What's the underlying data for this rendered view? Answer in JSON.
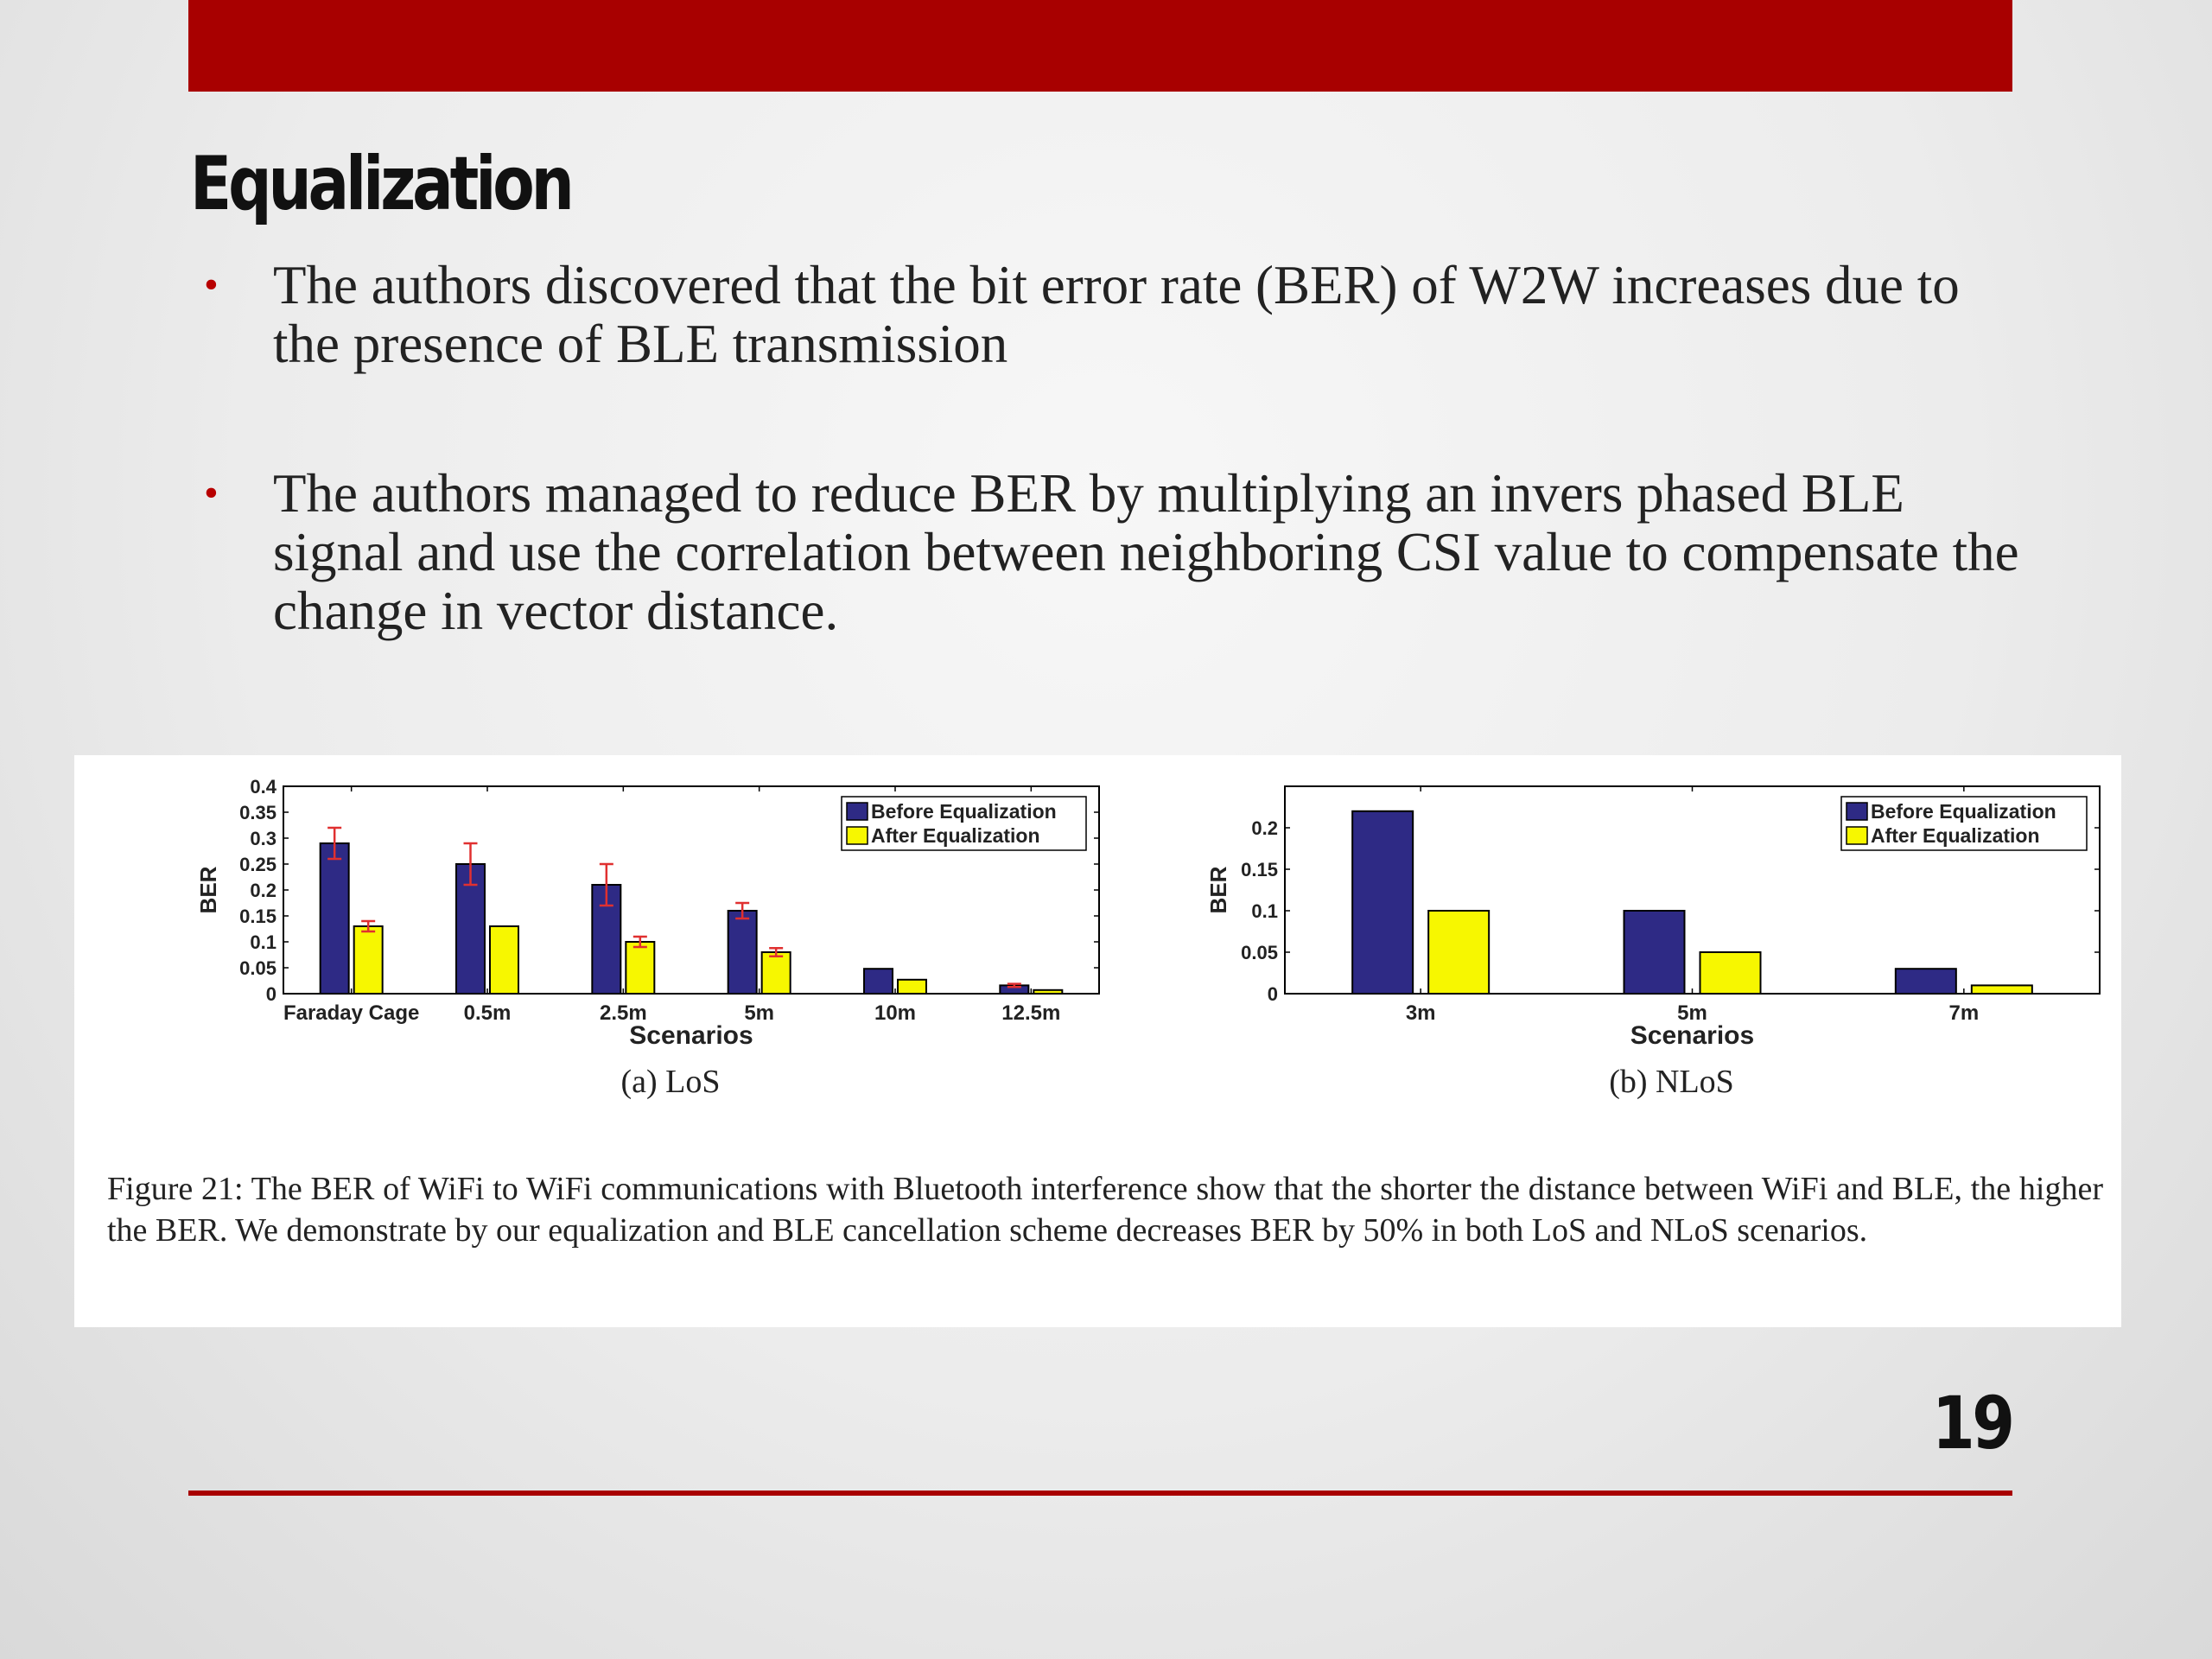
{
  "slide": {
    "title": "Equalization",
    "bullets": [
      "The authors discovered that the bit error rate (BER) of W2W increases due to the presence of BLE transmission",
      "The authors managed to reduce BER by multiplying an invers phased BLE signal and use the correlation between neighboring CSI value to compensate the change in vector distance."
    ],
    "bullet_symbol": "•",
    "page_number": "19",
    "colors": {
      "accent": "#a80000",
      "bullet": "#b80000",
      "before": "#2e2a85",
      "after": "#f7f700",
      "error_bar": "#e03030"
    }
  },
  "figure": {
    "caption": "Figure 21: The BER of WiFi to WiFi communications with Bluetooth interference show that the shorter the distance between WiFi and BLE, the higher the BER. We demonstrate by our equalization and BLE cancellation scheme decreases BER by 50% in both LoS and NLoS scenarios."
  },
  "chart_data": [
    {
      "type": "bar",
      "subtitle": "(a) LoS",
      "xlabel": "Scenarios",
      "ylabel": "BER",
      "ylim": [
        0,
        0.4
      ],
      "yticks": [
        "0",
        "0.05",
        "0.1",
        "0.15",
        "0.2",
        "0.25",
        "0.3",
        "0.35",
        "0.4"
      ],
      "categories": [
        "Faraday Cage",
        "0.5m",
        "2.5m",
        "5m",
        "10m",
        "12.5m"
      ],
      "series": [
        {
          "name": "Before Equalization",
          "values": [
            0.29,
            0.25,
            0.21,
            0.16,
            0.048,
            0.016
          ],
          "error": [
            0.03,
            0.04,
            0.04,
            0.015,
            0,
            0.003
          ]
        },
        {
          "name": "After Equalization",
          "values": [
            0.13,
            0.13,
            0.1,
            0.08,
            0.027,
            0.007
          ],
          "error": [
            0.01,
            0,
            0.01,
            0.008,
            0,
            0
          ]
        }
      ],
      "legend": "top-right",
      "grid": false
    },
    {
      "type": "bar",
      "subtitle": "(b) NLoS",
      "xlabel": "Scenarios",
      "ylabel": "BER",
      "ylim": [
        0,
        0.25
      ],
      "yticks": [
        "0",
        "0.05",
        "0.1",
        "0.15",
        "0.2"
      ],
      "categories": [
        "3m",
        "5m",
        "7m"
      ],
      "series": [
        {
          "name": "Before Equalization",
          "values": [
            0.22,
            0.1,
            0.03
          ]
        },
        {
          "name": "After Equalization",
          "values": [
            0.1,
            0.05,
            0.01
          ]
        }
      ],
      "legend": "top-right",
      "grid": false
    }
  ]
}
